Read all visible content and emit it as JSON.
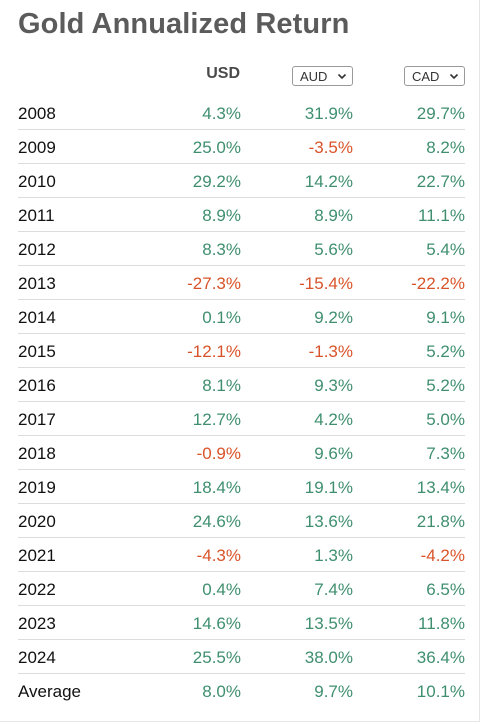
{
  "title": "Gold Annualized Return",
  "columns": {
    "usd": "USD",
    "aud_select": "AUD",
    "cad_select": "CAD"
  },
  "colors": {
    "positive": "#3f8f6f",
    "negative": "#d9532a",
    "title": "#5b5b5b"
  },
  "rows": [
    {
      "label": "2008",
      "usd": "4.3%",
      "aud": "31.9%",
      "cad": "29.7%"
    },
    {
      "label": "2009",
      "usd": "25.0%",
      "aud": "-3.5%",
      "cad": "8.2%"
    },
    {
      "label": "2010",
      "usd": "29.2%",
      "aud": "14.2%",
      "cad": "22.7%"
    },
    {
      "label": "2011",
      "usd": "8.9%",
      "aud": "8.9%",
      "cad": "11.1%"
    },
    {
      "label": "2012",
      "usd": "8.3%",
      "aud": "5.6%",
      "cad": "5.4%"
    },
    {
      "label": "2013",
      "usd": "-27.3%",
      "aud": "-15.4%",
      "cad": "-22.2%"
    },
    {
      "label": "2014",
      "usd": "0.1%",
      "aud": "9.2%",
      "cad": "9.1%"
    },
    {
      "label": "2015",
      "usd": "-12.1%",
      "aud": "-1.3%",
      "cad": "5.2%"
    },
    {
      "label": "2016",
      "usd": "8.1%",
      "aud": "9.3%",
      "cad": "5.2%"
    },
    {
      "label": "2017",
      "usd": "12.7%",
      "aud": "4.2%",
      "cad": "5.0%"
    },
    {
      "label": "2018",
      "usd": "-0.9%",
      "aud": "9.6%",
      "cad": "7.3%"
    },
    {
      "label": "2019",
      "usd": "18.4%",
      "aud": "19.1%",
      "cad": "13.4%"
    },
    {
      "label": "2020",
      "usd": "24.6%",
      "aud": "13.6%",
      "cad": "21.8%"
    },
    {
      "label": "2021",
      "usd": "-4.3%",
      "aud": "1.3%",
      "cad": "-4.2%"
    },
    {
      "label": "2022",
      "usd": "0.4%",
      "aud": "7.4%",
      "cad": "6.5%"
    },
    {
      "label": "2023",
      "usd": "14.6%",
      "aud": "13.5%",
      "cad": "11.8%"
    },
    {
      "label": "2024",
      "usd": "25.5%",
      "aud": "38.0%",
      "cad": "36.4%"
    },
    {
      "label": "Average",
      "usd": "8.0%",
      "aud": "9.7%",
      "cad": "10.1%"
    }
  ]
}
